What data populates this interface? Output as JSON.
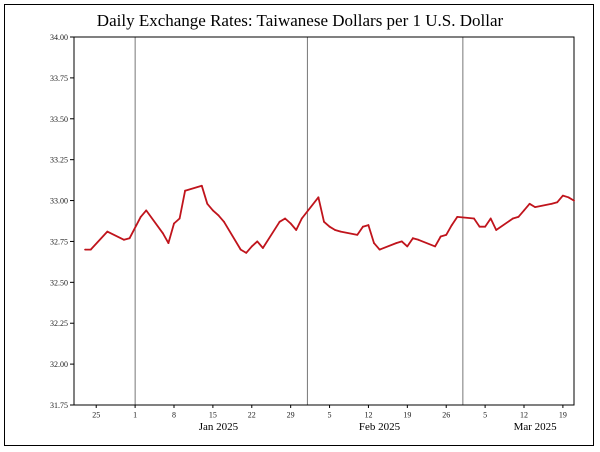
{
  "chart_data": {
    "type": "line",
    "title": "Daily Exchange Rates: Taiwanese Dollars per 1 U.S. Dollar",
    "xlabel": "",
    "ylabel": "",
    "ylim": [
      31.75,
      34.0
    ],
    "y_ticks": [
      "31.75",
      "32.00",
      "32.25",
      "32.50",
      "32.75",
      "33.00",
      "33.25",
      "33.50",
      "33.75",
      "34.00"
    ],
    "x_range": [
      "2024-12-21",
      "2025-03-21"
    ],
    "x_ticks": [
      {
        "date": "2024-12-25",
        "label": "25"
      },
      {
        "date": "2025-01-01",
        "label": "1"
      },
      {
        "date": "2025-01-08",
        "label": "8"
      },
      {
        "date": "2025-01-15",
        "label": "15"
      },
      {
        "date": "2025-01-22",
        "label": "22"
      },
      {
        "date": "2025-01-29",
        "label": "29"
      },
      {
        "date": "2025-02-05",
        "label": "5"
      },
      {
        "date": "2025-02-12",
        "label": "12"
      },
      {
        "date": "2025-02-19",
        "label": "19"
      },
      {
        "date": "2025-02-26",
        "label": "26"
      },
      {
        "date": "2025-03-05",
        "label": "5"
      },
      {
        "date": "2025-03-12",
        "label": "12"
      },
      {
        "date": "2025-03-19",
        "label": "19"
      }
    ],
    "month_labels": [
      {
        "date": "2025-01-16",
        "label": "Jan 2025"
      },
      {
        "date": "2025-02-14",
        "label": "Feb 2025"
      },
      {
        "date": "2025-03-14",
        "label": "Mar 2025"
      }
    ],
    "month_dividers": [
      "2025-01-01",
      "2025-02-01",
      "2025-03-01"
    ],
    "grid": "vertical lines at month starts",
    "line_color": "#c0141c",
    "series": [
      {
        "x": [
          "2024-12-23",
          "2024-12-24",
          "2024-12-27",
          "2024-12-30",
          "2024-12-31",
          "2025-01-02",
          "2025-01-03",
          "2025-01-06",
          "2025-01-07",
          "2025-01-08",
          "2025-01-09",
          "2025-01-10",
          "2025-01-13",
          "2025-01-14",
          "2025-01-15",
          "2025-01-16",
          "2025-01-17",
          "2025-01-20",
          "2025-01-21",
          "2025-01-22",
          "2025-01-23",
          "2025-01-24",
          "2025-01-27",
          "2025-01-28",
          "2025-01-29",
          "2025-01-30",
          "2025-01-31",
          "2025-02-03",
          "2025-02-04",
          "2025-02-05",
          "2025-02-06",
          "2025-02-07",
          "2025-02-10",
          "2025-02-11",
          "2025-02-12",
          "2025-02-13",
          "2025-02-14",
          "2025-02-17",
          "2025-02-18",
          "2025-02-19",
          "2025-02-20",
          "2025-02-21",
          "2025-02-24",
          "2025-02-25",
          "2025-02-26",
          "2025-02-27",
          "2025-02-28",
          "2025-03-03",
          "2025-03-04",
          "2025-03-05",
          "2025-03-06",
          "2025-03-07",
          "2025-03-10",
          "2025-03-11",
          "2025-03-12",
          "2025-03-13",
          "2025-03-14",
          "2025-03-17",
          "2025-03-18",
          "2025-03-19",
          "2025-03-20",
          "2025-03-21"
        ],
        "values": [
          32.7,
          32.7,
          32.81,
          32.76,
          32.77,
          32.9,
          32.94,
          32.8,
          32.74,
          32.86,
          32.89,
          33.06,
          33.09,
          32.98,
          32.94,
          32.91,
          32.87,
          32.7,
          32.68,
          32.72,
          32.75,
          32.71,
          32.87,
          32.89,
          32.86,
          32.82,
          32.89,
          33.02,
          32.87,
          32.84,
          32.82,
          32.81,
          32.79,
          32.84,
          32.85,
          32.74,
          32.7,
          32.74,
          32.75,
          32.72,
          32.77,
          32.76,
          32.72,
          32.78,
          32.79,
          32.85,
          32.9,
          32.89,
          32.84,
          32.84,
          32.89,
          32.82,
          32.89,
          32.9,
          32.94,
          32.98,
          32.96,
          32.98,
          32.99,
          33.03,
          33.02,
          33.0
        ]
      }
    ]
  }
}
